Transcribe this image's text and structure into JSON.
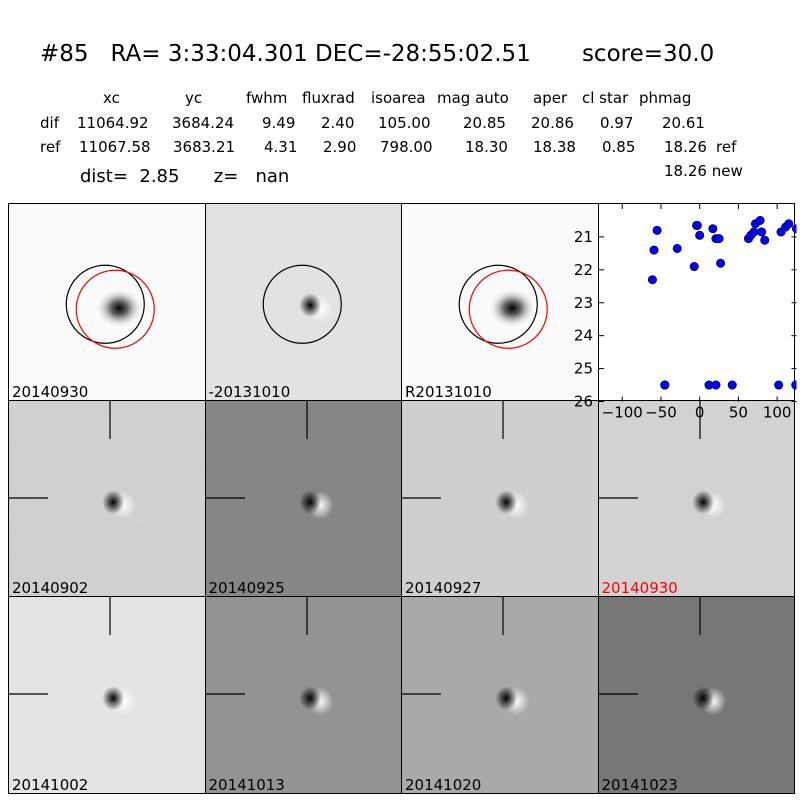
{
  "header": {
    "title": "#85   RA= 3:33:04.301 DEC=-28:55:02.51       score=30.0",
    "columns": [
      "xc",
      "yc",
      "fwhm",
      "fluxrad",
      "isoarea",
      "mag auto",
      "aper",
      "cl star",
      "phmag"
    ],
    "rows": [
      {
        "label": "dif",
        "values": [
          "11064.92",
          "3684.24",
          "9.49",
          "2.40",
          "105.00",
          "20.85",
          "20.86",
          "0.97",
          "20.61"
        ],
        "suffix": ""
      },
      {
        "label": "ref",
        "values": [
          "11067.58",
          "3683.21",
          "4.31",
          "2.90",
          "798.00",
          "18.30",
          "18.38",
          "0.85",
          "18.26"
        ],
        "suffix": "ref"
      }
    ],
    "new_line": "18.26 new",
    "dist_line": "dist=  2.85      z=   nan"
  },
  "panels": [
    {
      "label": "20140930",
      "bg": "#fbfbfb",
      "kind": "psf",
      "circles": [
        "black",
        "red"
      ],
      "label_color": "#000000"
    },
    {
      "label": "-20131010",
      "bg": "#e2e2e2",
      "kind": "dipole",
      "circles": [
        "black"
      ],
      "label_color": "#000000"
    },
    {
      "label": "R20131010",
      "bg": "#fbfbfb",
      "kind": "psf",
      "circles": [
        "black",
        "red"
      ],
      "label_color": "#000000"
    },
    {
      "label": "20140902",
      "bg": "#d3d3d3",
      "kind": "dipole",
      "noisy": true,
      "crosshair": true,
      "label_color": "#000000"
    },
    {
      "label": "20140925",
      "bg": "#868686",
      "kind": "dipole",
      "crosshair": true,
      "label_color": "#000000"
    },
    {
      "label": "20140927",
      "bg": "#cfcfcf",
      "kind": "dipole",
      "crosshair": true,
      "label_color": "#000000"
    },
    {
      "label": "20140930",
      "bg": "#d2d2d2",
      "kind": "dipole",
      "crosshair": true,
      "label_color": "#ff0000"
    },
    {
      "label": "20141002",
      "bg": "#e4e4e4",
      "kind": "dipole",
      "crosshair": true,
      "label_color": "#000000"
    },
    {
      "label": "20141013",
      "bg": "#939393",
      "kind": "dipole",
      "crosshair": true,
      "label_color": "#000000"
    },
    {
      "label": "20141020",
      "bg": "#a9a9a9",
      "kind": "dipole",
      "crosshair": true,
      "label_color": "#000000"
    },
    {
      "label": "20141023",
      "bg": "#777777",
      "kind": "dipole",
      "crosshair": true,
      "label_color": "#000000"
    }
  ],
  "chart_data": {
    "type": "scatter",
    "title": "",
    "xlabel": "",
    "ylabel": "",
    "xlim": [
      -130,
      125
    ],
    "ylim": [
      26,
      20
    ],
    "y_inverted": true,
    "xticks": [
      -100,
      -50,
      0,
      50,
      100
    ],
    "xtick_labels": [
      "−100",
      "−50",
      "0",
      "50",
      "100"
    ],
    "yticks": [
      21,
      22,
      23,
      24,
      25,
      26
    ],
    "ytick_labels": [
      "21",
      "22",
      "23",
      "24",
      "25",
      "26"
    ],
    "marker_color": "#0000ff",
    "series": [
      {
        "x": [
          -61,
          -59,
          -55,
          -45,
          -29,
          -7,
          -4,
          -3,
          0,
          17,
          21,
          25,
          27,
          63,
          66,
          70,
          72,
          78,
          80,
          84,
          105,
          111,
          115,
          125,
          -45,
          12,
          21,
          42,
          102,
          124
        ],
        "y": [
          22.3,
          21.4,
          20.8,
          25.5,
          21.35,
          21.9,
          20.65,
          20.65,
          20.95,
          20.75,
          21.05,
          21.05,
          21.8,
          21.05,
          20.95,
          20.85,
          20.6,
          20.5,
          20.85,
          21.1,
          20.85,
          20.7,
          20.6,
          20.75,
          25.5,
          25.5,
          25.5,
          25.5,
          25.5,
          25.5
        ]
      }
    ]
  }
}
